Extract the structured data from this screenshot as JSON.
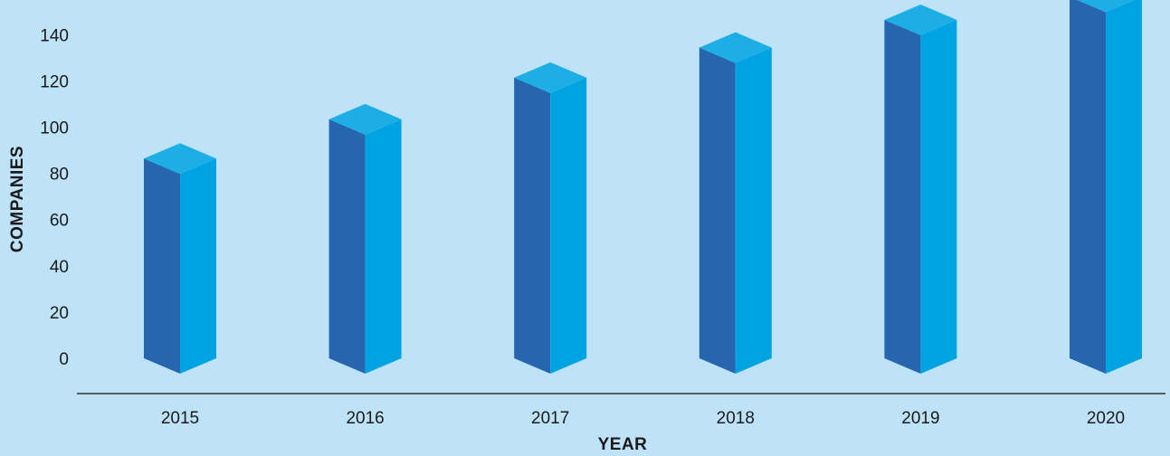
{
  "colors": {
    "background": "#bee3f8",
    "bar_front": "#2566ae",
    "bar_side": "#00a3e2",
    "bar_top": "#1eaee6",
    "axis_line": "#333333"
  },
  "chart_data": {
    "type": "bar",
    "style": "3d-columns",
    "categories": [
      "2015",
      "2016",
      "2017",
      "2018",
      "2019",
      "2020"
    ],
    "values": [
      77,
      94,
      112,
      125,
      137,
      147
    ],
    "xlabel": "YEAR",
    "ylabel": "COMPANIES",
    "ylim": [
      0,
      140
    ],
    "yticks": [
      0,
      20,
      40,
      60,
      80,
      100,
      120,
      140
    ],
    "grid": false,
    "legend": "none"
  }
}
